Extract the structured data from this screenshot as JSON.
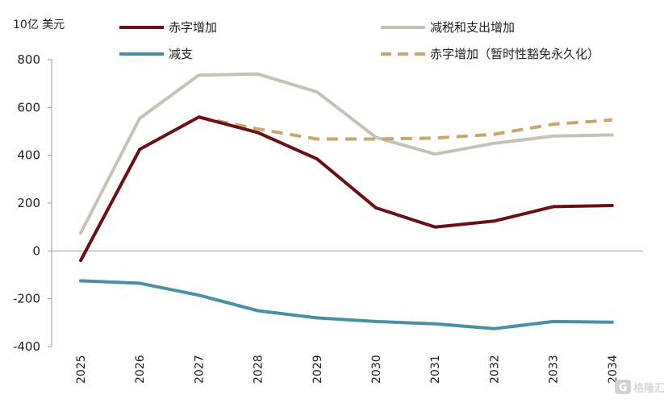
{
  "chart_data": {
    "type": "line",
    "unit_label": "10亿 美元",
    "x": [
      "2025",
      "2026",
      "2027",
      "2028",
      "2029",
      "2030",
      "2031",
      "2032",
      "2033",
      "2034"
    ],
    "ylim": [
      -400,
      800
    ],
    "yticks": [
      800,
      600,
      400,
      200,
      0,
      -200,
      -400
    ],
    "grid": false,
    "legend_position": "top",
    "series": [
      {
        "name": "赤字增加",
        "color": "#6b0f12",
        "style": "solid",
        "values": [
          -40,
          425,
          560,
          495,
          385,
          180,
          100,
          125,
          185,
          190
        ]
      },
      {
        "name": "减税和支出增加",
        "color": "#c6c3b4",
        "style": "solid",
        "values": [
          75,
          555,
          735,
          740,
          665,
          475,
          405,
          450,
          480,
          485
        ]
      },
      {
        "name": "减支",
        "color": "#4a8fa3",
        "style": "solid",
        "values": [
          -125,
          -135,
          -185,
          -250,
          -280,
          -295,
          -305,
          -325,
          -295,
          -298
        ]
      },
      {
        "name": "赤字增加（暂时性豁免永久化）",
        "color": "#c9a66b",
        "style": "dashed",
        "values": [
          null,
          null,
          560,
          510,
          468,
          468,
          472,
          488,
          530,
          548
        ]
      }
    ]
  },
  "watermark": {
    "text": "格隆汇",
    "icon": "g-logo-icon"
  }
}
